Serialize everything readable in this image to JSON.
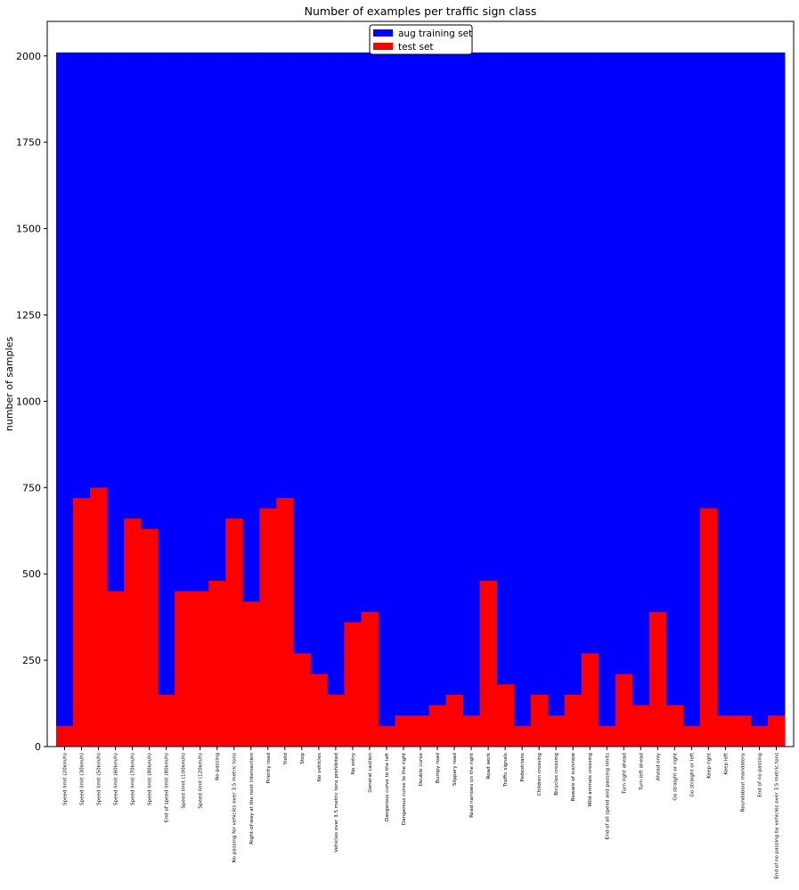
{
  "chart_data": {
    "type": "bar",
    "title": "Number of examples per traffic sign class",
    "xlabel": "",
    "ylabel": "number of samples",
    "ylim": [
      0,
      2100
    ],
    "yticks": [
      0,
      250,
      500,
      750,
      1000,
      1250,
      1500,
      1750,
      2000
    ],
    "legend_position": "top-center",
    "grid": false,
    "categories": [
      "Speed limit (20km/h)",
      "Speed limit (30km/h)",
      "Speed limit (50km/h)",
      "Speed limit (60km/h)",
      "Speed limit (70km/h)",
      "Speed limit (80km/h)",
      "End of speed limit (80km/h)",
      "Speed limit (100km/h)",
      "Speed limit (120km/h)",
      "No passing",
      "No passing for vehicles over 3.5 metric tons",
      "Right-of-way at the next intersection",
      "Priority road",
      "Yield",
      "Stop",
      "No vehicles",
      "Vehicles over 3.5 metric tons prohibited",
      "No entry",
      "General caution",
      "Dangerous curve to the left",
      "Dangerous curve to the right",
      "Double curve",
      "Bumpy road",
      "Slippery road",
      "Road narrows on the right",
      "Road work",
      "Traffic signals",
      "Pedestrians",
      "Children crossing",
      "Bicycles crossing",
      "Beware of ice/snow",
      "Wild animals crossing",
      "End of all speed and passing limits",
      "Turn right ahead",
      "Turn left ahead",
      "Ahead only",
      "Go straight or right",
      "Go straight or left",
      "Keep right",
      "Keep left",
      "Roundabout mandatory",
      "End of no passing",
      "End of no passing by vehicles over 3.5 metric tons"
    ],
    "series": [
      {
        "name": "aug training set",
        "color": "#0000ff",
        "values": [
          2010,
          2010,
          2010,
          2010,
          2010,
          2010,
          2010,
          2010,
          2010,
          2010,
          2010,
          2010,
          2010,
          2010,
          2010,
          2010,
          2010,
          2010,
          2010,
          2010,
          2010,
          2010,
          2010,
          2010,
          2010,
          2010,
          2010,
          2010,
          2010,
          2010,
          2010,
          2010,
          2010,
          2010,
          2010,
          2010,
          2010,
          2010,
          2010,
          2010,
          2010,
          2010,
          2010
        ]
      },
      {
        "name": "test set",
        "color": "#ff0000",
        "values": [
          60,
          720,
          750,
          450,
          660,
          630,
          150,
          450,
          450,
          480,
          660,
          420,
          690,
          720,
          270,
          210,
          150,
          360,
          390,
          60,
          90,
          90,
          120,
          150,
          90,
          480,
          180,
          60,
          150,
          90,
          150,
          270,
          60,
          210,
          120,
          390,
          120,
          60,
          690,
          90,
          90,
          60,
          90
        ]
      }
    ]
  }
}
